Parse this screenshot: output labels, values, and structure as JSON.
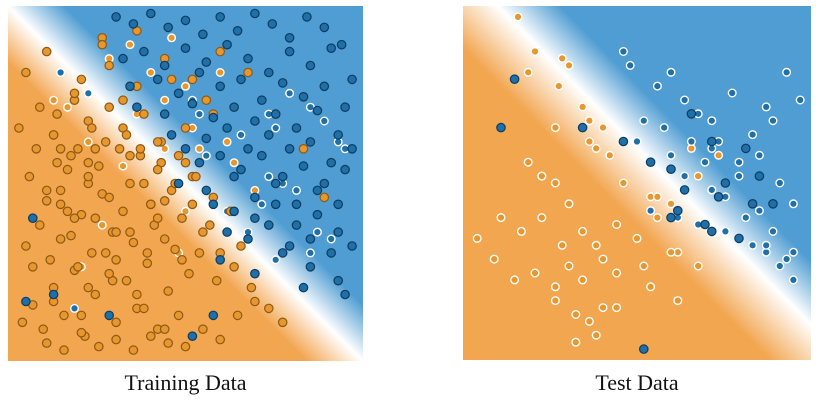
{
  "colors": {
    "orange": "#F2A650",
    "blue": "#4F9DD2",
    "white": "#FFFFFF",
    "point_orange_fill": "#E8962E",
    "point_orange_stroke": "#8C5A15",
    "point_blue_fill": "#1F6FA8",
    "point_blue_stroke": "#0E3C60",
    "point_light_stroke": "#FFFFFF"
  },
  "chart_data": [
    {
      "type": "scatter",
      "title": "Training Data",
      "xlabel": "",
      "ylabel": "",
      "xlim": [
        0,
        1
      ],
      "ylim": [
        0,
        1
      ],
      "grid": false,
      "background": "decision-boundary-gradient",
      "series": [
        {
          "style": "dark",
          "color": "orange",
          "x": [
            0.03,
            0.06,
            0.09,
            0.12,
            0.15,
            0.18,
            0.21,
            0.24,
            0.27,
            0.3,
            0.33,
            0.36,
            0.39,
            0.42,
            0.45,
            0.48,
            0.51,
            0.04,
            0.08,
            0.11,
            0.14,
            0.17,
            0.2,
            0.23,
            0.26,
            0.29,
            0.32,
            0.35,
            0.38,
            0.41,
            0.44,
            0.47,
            0.05,
            0.1,
            0.13,
            0.16,
            0.19,
            0.22,
            0.25,
            0.28,
            0.31,
            0.34,
            0.37,
            0.4,
            0.43,
            0.46,
            0.49,
            0.52,
            0.55,
            0.02,
            0.07,
            0.12,
            0.17,
            0.22,
            0.27,
            0.32,
            0.37,
            0.42,
            0.47,
            0.52,
            0.57,
            0.6,
            0.08,
            0.13,
            0.18,
            0.23,
            0.28,
            0.33,
            0.38,
            0.43,
            0.48,
            0.53,
            0.58,
            0.63,
            0.66,
            0.1,
            0.15,
            0.2,
            0.25,
            0.3,
            0.35,
            0.4,
            0.45,
            0.5,
            0.55,
            0.6,
            0.65,
            0.7,
            0.14,
            0.19,
            0.24,
            0.29,
            0.34,
            0.39,
            0.44,
            0.49,
            0.54,
            0.59,
            0.64,
            0.69,
            0.74,
            0.78,
            0.2,
            0.28,
            0.36,
            0.44,
            0.52,
            0.6,
            0.68,
            0.76,
            0.84,
            0.9,
            0.1,
            0.18,
            0.26,
            0.34,
            0.42,
            0.5,
            0.58,
            0.04,
            0.12,
            0.22,
            0.32,
            0.26,
            0.36,
            0.46,
            0.56,
            0.16,
            0.24,
            0.3,
            0.4,
            0.5,
            0.14,
            0.22,
            0.3,
            0.12,
            0.2,
            0.28,
            0.36,
            0.44,
            0.06,
            0.1,
            0.14,
            0.18,
            0.22,
            0.38,
            0.42
          ],
          "y": [
            0.1,
            0.15,
            0.08,
            0.2,
            0.12,
            0.25,
            0.06,
            0.18,
            0.3,
            0.1,
            0.22,
            0.14,
            0.27,
            0.08,
            0.19,
            0.12,
            0.24,
            0.32,
            0.38,
            0.28,
            0.44,
            0.35,
            0.41,
            0.3,
            0.47,
            0.36,
            0.42,
            0.33,
            0.5,
            0.38,
            0.45,
            0.31,
            0.52,
            0.48,
            0.56,
            0.42,
            0.6,
            0.5,
            0.55,
            0.46,
            0.6,
            0.5,
            0.58,
            0.44,
            0.56,
            0.48,
            0.4,
            0.52,
            0.36,
            0.66,
            0.6,
            0.64,
            0.58,
            0.68,
            0.62,
            0.66,
            0.6,
            0.54,
            0.5,
            0.44,
            0.38,
            0.3,
            0.72,
            0.7,
            0.74,
            0.66,
            0.72,
            0.64,
            0.7,
            0.62,
            0.58,
            0.52,
            0.46,
            0.42,
            0.32,
            0.04,
            0.02,
            0.07,
            0.03,
            0.05,
            0.02,
            0.06,
            0.04,
            0.03,
            0.08,
            0.05,
            0.12,
            0.16,
            0.34,
            0.26,
            0.4,
            0.22,
            0.36,
            0.3,
            0.34,
            0.28,
            0.3,
            0.22,
            0.26,
            0.2,
            0.14,
            0.1,
            0.8,
            0.84,
            0.78,
            0.86,
            0.8,
            0.88,
            0.82,
            0.7,
            0.6,
            0.46,
            0.88,
            0.76,
            0.92,
            0.58,
            0.62,
            0.66,
            0.7,
            0.82,
            0.64,
            0.52,
            0.74,
            0.9,
            0.94,
            0.8,
            0.74,
            0.54,
            0.6,
            0.36,
            0.44,
            0.56,
            0.48,
            0.2,
            0.28,
            0.16,
            0.12,
            0.24,
            0.18,
            0.08,
            0.26,
            0.45,
            0.6,
            0.4,
            0.56,
            0.14,
            0.4
          ]
        },
        {
          "style": "dark",
          "color": "blue",
          "x": [
            0.3,
            0.35,
            0.4,
            0.45,
            0.5,
            0.55,
            0.6,
            0.65,
            0.7,
            0.75,
            0.8,
            0.85,
            0.9,
            0.95,
            0.32,
            0.38,
            0.44,
            0.5,
            0.56,
            0.62,
            0.68,
            0.74,
            0.8,
            0.86,
            0.92,
            0.98,
            0.34,
            0.42,
            0.48,
            0.54,
            0.6,
            0.66,
            0.72,
            0.78,
            0.84,
            0.9,
            0.96,
            0.36,
            0.44,
            0.52,
            0.58,
            0.64,
            0.7,
            0.76,
            0.82,
            0.88,
            0.94,
            0.46,
            0.5,
            0.56,
            0.62,
            0.68,
            0.74,
            0.8,
            0.86,
            0.92,
            0.98,
            0.54,
            0.6,
            0.66,
            0.72,
            0.78,
            0.84,
            0.9,
            0.96,
            0.48,
            0.56,
            0.64,
            0.7,
            0.76,
            0.82,
            0.88,
            0.94,
            0.58,
            0.64,
            0.7,
            0.76,
            0.82,
            0.88,
            0.94,
            0.62,
            0.68,
            0.74,
            0.8,
            0.86,
            0.92,
            0.98,
            0.6,
            0.7,
            0.78,
            0.86,
            0.94,
            0.84,
            0.96,
            0.06,
            0.12,
            0.04,
            0.52,
            0.58,
            0.28
          ],
          "y": [
            0.98,
            0.96,
            0.99,
            0.95,
            0.97,
            0.93,
            0.98,
            0.94,
            0.99,
            0.96,
            0.92,
            0.98,
            0.95,
            0.9,
            0.86,
            0.88,
            0.84,
            0.89,
            0.85,
            0.9,
            0.86,
            0.82,
            0.88,
            0.84,
            0.89,
            0.8,
            0.78,
            0.8,
            0.76,
            0.82,
            0.78,
            0.8,
            0.74,
            0.79,
            0.75,
            0.78,
            0.72,
            0.72,
            0.7,
            0.73,
            0.69,
            0.72,
            0.68,
            0.7,
            0.66,
            0.71,
            0.64,
            0.64,
            0.6,
            0.63,
            0.66,
            0.6,
            0.64,
            0.6,
            0.62,
            0.56,
            0.6,
            0.56,
            0.58,
            0.54,
            0.58,
            0.52,
            0.55,
            0.5,
            0.54,
            0.5,
            0.48,
            0.52,
            0.46,
            0.5,
            0.44,
            0.48,
            0.44,
            0.44,
            0.42,
            0.4,
            0.44,
            0.38,
            0.41,
            0.36,
            0.36,
            0.34,
            0.38,
            0.32,
            0.34,
            0.3,
            0.32,
            0.28,
            0.24,
            0.3,
            0.26,
            0.22,
            0.2,
            0.18,
            0.4,
            0.18,
            0.16,
            0.06,
            0.12,
            0.12
          ]
        },
        {
          "style": "light",
          "color": "orange",
          "x": [
            0.28,
            0.34,
            0.4,
            0.46,
            0.5,
            0.16,
            0.22,
            0.44,
            0.52,
            0.58,
            0.62,
            0.36,
            0.32,
            0.64,
            0.7,
            0.2,
            0.26,
            0.48,
            0.5,
            0.12,
            0.44,
            0.54,
            0.6
          ],
          "y": [
            0.86,
            0.9,
            0.82,
            0.92,
            0.78,
            0.72,
            0.62,
            0.6,
            0.66,
            0.7,
            0.62,
            0.7,
            0.55,
            0.56,
            0.48,
            0.26,
            0.38,
            0.3,
            0.42,
            0.74,
            0.74,
            0.6,
            0.82
          ]
        },
        {
          "style": "light",
          "color": "blue",
          "x": [
            0.14,
            0.22,
            0.52,
            0.54,
            0.62,
            0.64,
            0.66,
            0.72,
            0.74,
            0.76,
            0.8,
            0.86,
            0.9,
            0.94,
            0.96,
            0.74,
            0.78,
            0.82,
            0.88,
            0.92,
            0.7,
            0.76,
            0.86,
            0.62,
            0.68,
            0.72,
            0.56,
            0.18
          ],
          "y": [
            0.82,
            0.76,
            0.74,
            0.7,
            0.66,
            0.72,
            0.64,
            0.74,
            0.7,
            0.66,
            0.76,
            0.72,
            0.68,
            0.62,
            0.6,
            0.52,
            0.5,
            0.48,
            0.36,
            0.34,
            0.46,
            0.28,
            0.3,
            0.42,
            0.36,
            0.44,
            0.58,
            0.14
          ]
        }
      ]
    },
    {
      "type": "scatter",
      "title": "Test Data",
      "xlabel": "",
      "ylabel": "",
      "xlim": [
        0,
        1
      ],
      "ylim": [
        0,
        1
      ],
      "grid": false,
      "background": "decision-boundary-gradient",
      "series": [
        {
          "style": "light",
          "color": "orange",
          "x": [
            0.15,
            0.18,
            0.2,
            0.27,
            0.3,
            0.34,
            0.36,
            0.38,
            0.4,
            0.18,
            0.22,
            0.26,
            0.3,
            0.36,
            0.42,
            0.46,
            0.54,
            0.6,
            0.66,
            0.1,
            0.16,
            0.22,
            0.28,
            0.34,
            0.38,
            0.44,
            0.5,
            0.56,
            0.62,
            0.68,
            0.74,
            0.08,
            0.14,
            0.2,
            0.26,
            0.3,
            0.34,
            0.4,
            0.44,
            0.52,
            0.62,
            0.03,
            0.22,
            0.26,
            0.32,
            0.4,
            0.54,
            0.28,
            0.36,
            0.44,
            0.26,
            0.32,
            0.38,
            0.56,
            0.6,
            0.68,
            0.72,
            0.84
          ],
          "y": [
            0.98,
            0.82,
            0.88,
            0.78,
            0.84,
            0.72,
            0.68,
            0.6,
            0.66,
            0.56,
            0.52,
            0.5,
            0.44,
            0.62,
            0.58,
            0.5,
            0.46,
            0.44,
            0.6,
            0.4,
            0.36,
            0.4,
            0.32,
            0.36,
            0.32,
            0.38,
            0.34,
            0.4,
            0.3,
            0.26,
            0.58,
            0.28,
            0.22,
            0.24,
            0.2,
            0.26,
            0.22,
            0.28,
            0.24,
            0.26,
            0.16,
            0.34,
            0.52,
            0.66,
            0.12,
            0.14,
            0.2,
            0.86,
            0.1,
            0.14,
            0.16,
            0.04,
            0.06,
            0.46,
            0.3,
            0.52,
            0.48,
            0.44
          ]
        },
        {
          "style": "light",
          "color": "blue",
          "x": [
            0.46,
            0.48,
            0.6,
            0.56,
            0.64,
            0.68,
            0.72,
            0.78,
            0.84,
            0.88,
            0.9,
            0.94,
            0.98,
            0.52,
            0.58,
            0.66,
            0.7,
            0.74,
            0.8,
            0.86,
            0.92,
            0.96,
            0.54,
            0.62,
            0.68,
            0.76,
            0.84,
            0.88,
            0.92,
            0.96,
            0.72,
            0.8,
            0.86,
            0.9,
            0.96,
            0.5,
            0.6,
            0.64,
            0.72,
            0.76,
            0.82,
            0.88,
            0.94
          ],
          "y": [
            0.88,
            0.84,
            0.82,
            0.78,
            0.74,
            0.7,
            0.68,
            0.76,
            0.64,
            0.72,
            0.68,
            0.82,
            0.74,
            0.68,
            0.66,
            0.62,
            0.56,
            0.62,
            0.52,
            0.58,
            0.5,
            0.44,
            0.42,
            0.4,
            0.38,
            0.36,
            0.32,
            0.3,
            0.26,
            0.22,
            0.6,
            0.56,
            0.42,
            0.36,
            0.3,
            0.62,
            0.58,
            0.52,
            0.48,
            0.46,
            0.4,
            0.32,
            0.28
          ]
        },
        {
          "style": "dark",
          "color": "blue",
          "x": [
            0.14,
            0.1,
            0.34,
            0.46,
            0.66,
            0.72,
            0.54,
            0.6,
            0.82,
            0.74,
            0.86,
            0.9,
            0.62,
            0.7,
            0.76,
            0.52,
            0.6,
            0.64,
            0.72,
            0.8,
            0.84
          ],
          "y": [
            0.8,
            0.66,
            0.66,
            0.62,
            0.7,
            0.62,
            0.56,
            0.54,
            0.6,
            0.46,
            0.52,
            0.44,
            0.42,
            0.38,
            0.5,
            0.02,
            0.4,
            0.48,
            0.36,
            0.34,
            0.44
          ]
        }
      ]
    }
  ]
}
